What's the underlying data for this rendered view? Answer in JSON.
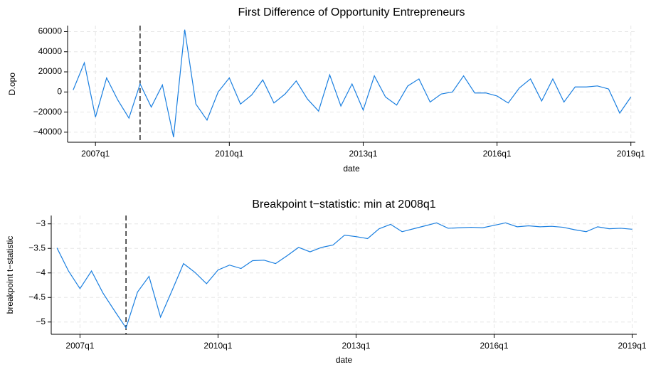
{
  "chart_data": [
    {
      "type": "line",
      "title": "First Difference of Opportunity Entrepreneurs",
      "xlabel": "date",
      "ylabel": "D.opo",
      "color": "#1a7fe0",
      "x": [
        "2006q3",
        "2006q4",
        "2007q1",
        "2007q2",
        "2007q3",
        "2007q4",
        "2008q1",
        "2008q2",
        "2008q3",
        "2008q4",
        "2009q1",
        "2009q2",
        "2009q3",
        "2009q4",
        "2010q1",
        "2010q2",
        "2010q3",
        "2010q4",
        "2011q1",
        "2011q2",
        "2011q3",
        "2011q4",
        "2012q1",
        "2012q2",
        "2012q3",
        "2012q4",
        "2013q1",
        "2013q2",
        "2013q3",
        "2013q4",
        "2014q1",
        "2014q2",
        "2014q3",
        "2014q4",
        "2015q1",
        "2015q2",
        "2015q3",
        "2015q4",
        "2016q1",
        "2016q2",
        "2016q3",
        "2016q4",
        "2017q1",
        "2017q2",
        "2017q3",
        "2017q4",
        "2018q1",
        "2018q2",
        "2018q3",
        "2018q4",
        "2019q1"
      ],
      "values": [
        2000,
        29000,
        -25000,
        14000,
        -8000,
        -26000,
        8000,
        -15000,
        7000,
        -45000,
        62000,
        -12000,
        -28000,
        0,
        14000,
        -12000,
        -3000,
        12000,
        -11000,
        -2000,
        11000,
        -7000,
        -19000,
        17000,
        -14000,
        8000,
        -18000,
        16000,
        -5000,
        -13000,
        6000,
        13000,
        -10000,
        -2000,
        0,
        16000,
        -1000,
        -1000,
        -4000,
        -11000,
        4000,
        13000,
        -9000,
        13000,
        -10000,
        5000,
        5000,
        6000,
        3000,
        -21000,
        -5000
      ],
      "vline": "2008q1",
      "xlim": [
        "2006q3",
        "2019q1"
      ],
      "xticks": [
        "2007q1",
        "2010q1",
        "2013q1",
        "2016q1",
        "2019q1"
      ],
      "ylim": [
        -50000,
        66000
      ],
      "yticks": [
        {
          "value": -40000,
          "label": "−40000"
        },
        {
          "value": -20000,
          "label": "−20000"
        },
        0,
        20000,
        40000,
        60000
      ],
      "grid": true
    },
    {
      "type": "line",
      "title": "Breakpoint t−statistic: min at 2008q1",
      "xlabel": "date",
      "ylabel": "breakpoint t−statistic",
      "color": "#1a7fe0",
      "x": [
        "2006q3",
        "2006q4",
        "2007q1",
        "2007q2",
        "2007q3",
        "2007q4",
        "2008q1",
        "2008q2",
        "2008q3",
        "2008q4",
        "2009q1",
        "2009q2",
        "2009q3",
        "2009q4",
        "2010q1",
        "2010q2",
        "2010q3",
        "2010q4",
        "2011q1",
        "2011q2",
        "2011q3",
        "2011q4",
        "2012q1",
        "2012q2",
        "2012q3",
        "2012q4",
        "2013q1",
        "2013q2",
        "2013q3",
        "2013q4",
        "2014q1",
        "2014q2",
        "2014q3",
        "2014q4",
        "2015q1",
        "2015q2",
        "2015q3",
        "2015q4",
        "2016q1",
        "2016q2",
        "2016q3",
        "2016q4",
        "2017q1",
        "2017q2",
        "2017q3",
        "2017q4",
        "2018q1",
        "2018q2",
        "2018q3",
        "2018q4",
        "2019q1"
      ],
      "values": [
        -3.49,
        -3.96,
        -4.32,
        -3.96,
        -4.41,
        -4.77,
        -5.12,
        -4.39,
        -4.07,
        -4.9,
        -4.36,
        -3.81,
        -3.99,
        -4.22,
        -3.94,
        -3.84,
        -3.91,
        -3.75,
        -3.74,
        -3.81,
        -3.65,
        -3.48,
        -3.57,
        -3.48,
        -3.43,
        -3.23,
        -3.26,
        -3.3,
        -3.1,
        -3.01,
        -3.16,
        -3.1,
        -3.04,
        -2.98,
        -3.09,
        -3.08,
        -3.07,
        -3.08,
        -3.03,
        -2.98,
        -3.06,
        -3.04,
        -3.06,
        -3.05,
        -3.07,
        -3.12,
        -3.16,
        -3.06,
        -3.1,
        -3.09,
        -3.11
      ],
      "vline": "2008q1",
      "xlim": [
        "2006q3",
        "2019q1"
      ],
      "xticks": [
        "2007q1",
        "2010q1",
        "2013q1",
        "2016q1",
        "2019q1"
      ],
      "ylim": [
        -5.25,
        -2.83
      ],
      "yticks": [
        {
          "value": -5,
          "label": "−5"
        },
        {
          "value": -4.5,
          "label": "−4.5"
        },
        {
          "value": -4,
          "label": "−4"
        },
        {
          "value": -3.5,
          "label": "−3.5"
        },
        {
          "value": -3,
          "label": "−3"
        }
      ],
      "grid": true
    }
  ]
}
